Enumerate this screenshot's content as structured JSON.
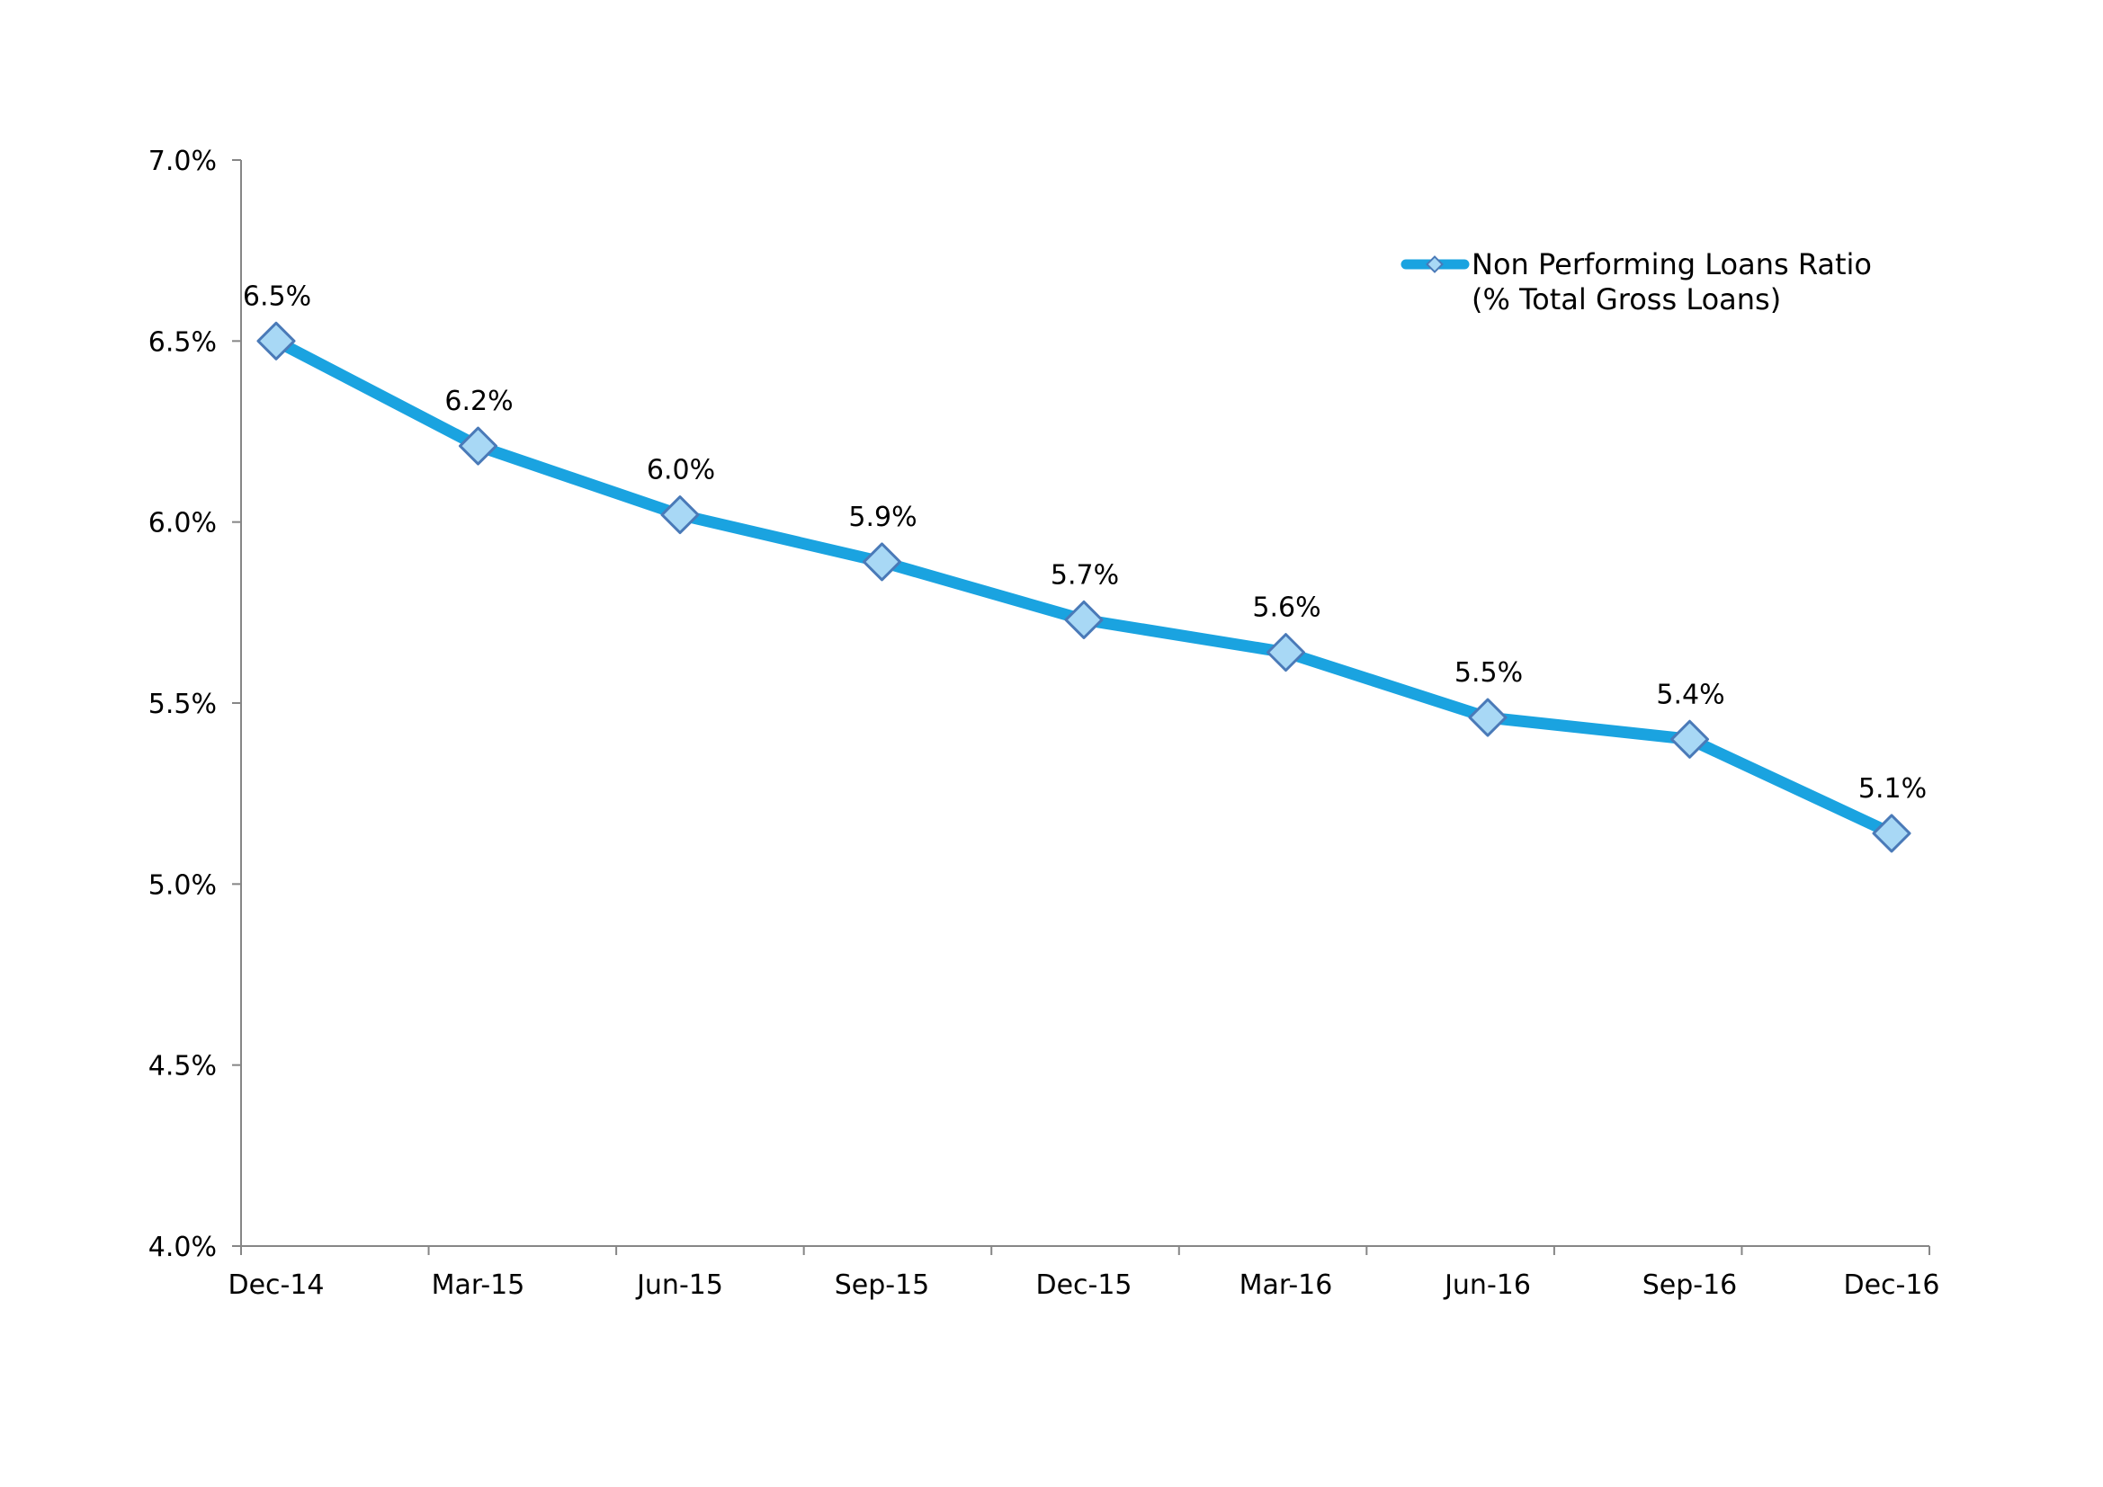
{
  "chart_data": {
    "type": "line",
    "categories": [
      "Dec-14",
      "Mar-15",
      "Jun-15",
      "Sep-15",
      "Dec-15",
      "Mar-16",
      "Jun-16",
      "Sep-16",
      "Dec-16"
    ],
    "series": [
      {
        "name": "Non Performing Loans Ratio (% Total Gross Loans)",
        "legend_lines": [
          "Non Performing Loans Ratio",
          "(% Total Gross Loans)"
        ],
        "values": [
          6.5,
          6.21,
          6.02,
          5.89,
          5.73,
          5.64,
          5.46,
          5.4,
          5.14
        ],
        "data_labels": [
          "6.5%",
          "6.2%",
          "6.0%",
          "5.9%",
          "5.7%",
          "5.6%",
          "5.5%",
          "5.4%",
          "5.1%"
        ],
        "line_color": "#1aa3e0",
        "marker": "diamond",
        "marker_fill": "#a8d8f5",
        "marker_stroke": "#4a7ab8"
      }
    ],
    "ylim": [
      4.0,
      7.0
    ],
    "yticks": [
      4.0,
      4.5,
      5.0,
      5.5,
      6.0,
      6.5,
      7.0
    ],
    "ytick_labels": [
      "4.0%",
      "4.5%",
      "5.0%",
      "5.5%",
      "6.0%",
      "6.5%",
      "7.0%"
    ],
    "title": "",
    "xlabel": "",
    "ylabel": "",
    "grid": false,
    "legend_position": "top-right",
    "axis_color": "#868686"
  }
}
